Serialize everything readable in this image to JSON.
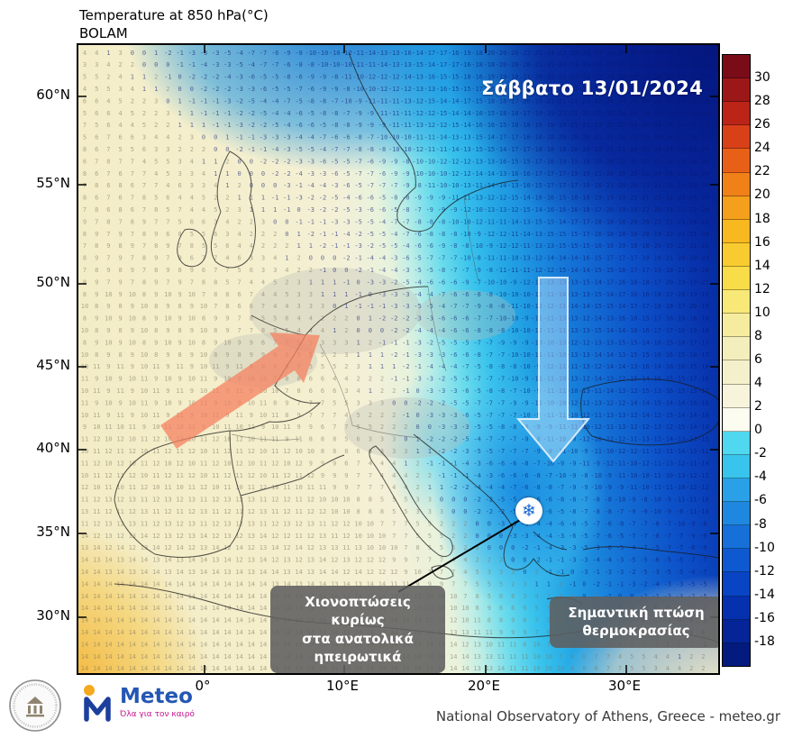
{
  "header": {
    "title": "Temperature at 850 hPa(°C)",
    "model": "BOLAM"
  },
  "map": {
    "date_label": "Σάββατο 13/01/2024",
    "lat_ticks": [
      "60°N",
      "55°N",
      "50°N",
      "45°N",
      "40°N",
      "35°N",
      "30°N"
    ],
    "lon_ticks": [
      "0°",
      "10°E",
      "20°E",
      "30°E"
    ],
    "annotation_snow": "Χιονοπτώσεις κυρίως\nστα ανατολικά\nηπειρωτικά",
    "annotation_drop": "Σημαντική πτώση\nθερμοκρασίας",
    "snowflake_icon": "❄"
  },
  "colorbar": {
    "ticks": [
      "30",
      "28",
      "26",
      "24",
      "22",
      "20",
      "18",
      "16",
      "14",
      "12",
      "10",
      "8",
      "6",
      "4",
      "2",
      "0",
      "-2",
      "-4",
      "-6",
      "-8",
      "-10",
      "-12",
      "-14",
      "-16",
      "-18"
    ],
    "colors": [
      "#7a0c18",
      "#9c1818",
      "#bc2418",
      "#d84018",
      "#e86018",
      "#f08018",
      "#f4a01c",
      "#f8b820",
      "#f8cc30",
      "#f8dc48",
      "#f8e878",
      "#f6eca0",
      "#f4eebc",
      "#f4f0cc",
      "#f8f4dc",
      "#fdfcf0",
      "#50d8f0",
      "#38c4ec",
      "#2aa0e8",
      "#1e88e0",
      "#1670d8",
      "#0e58d0",
      "#0844c4",
      "#0530ae",
      "#042498",
      "#031a7e"
    ]
  },
  "footer": {
    "credit": "National Observatory of Athens, Greece - meteo.gr",
    "logo_text": "Meteo",
    "logo_tagline": "Όλα για τον καιρό"
  }
}
